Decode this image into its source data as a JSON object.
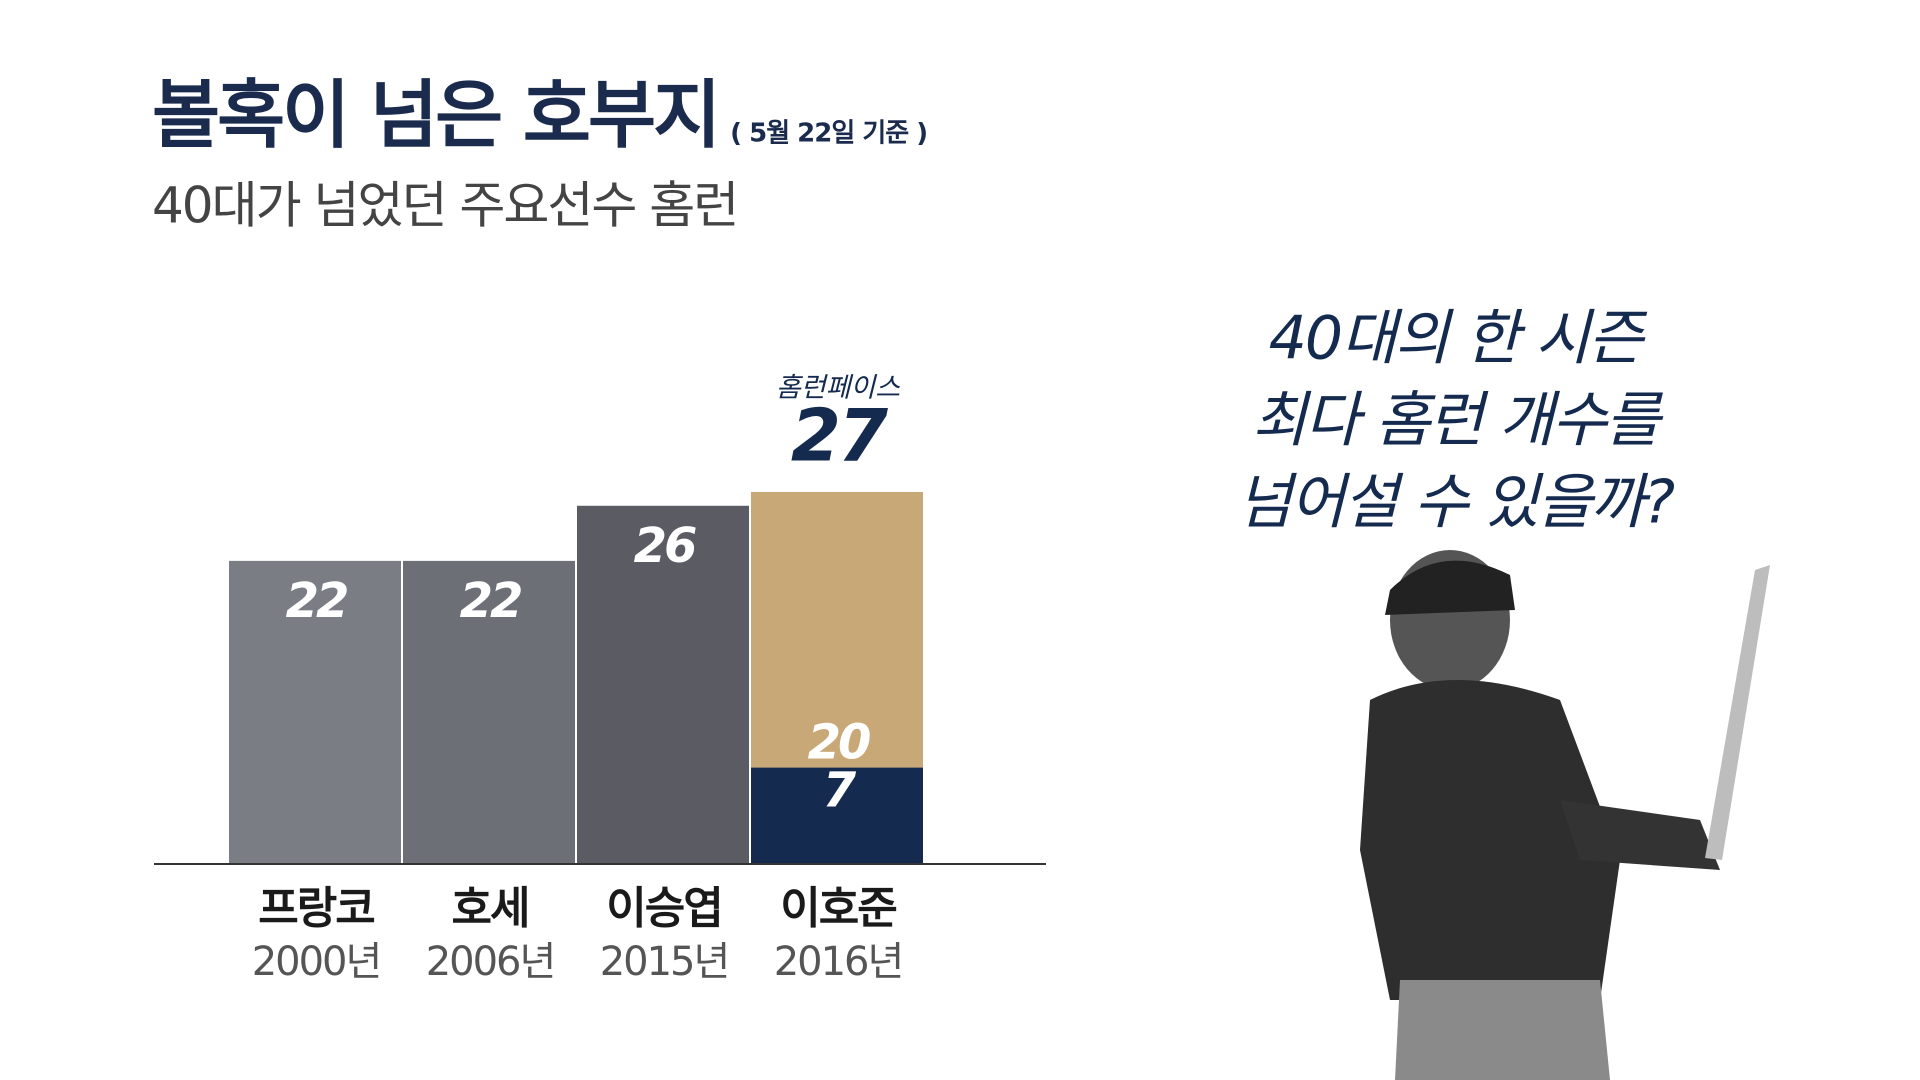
{
  "chart_data": {
    "type": "bar",
    "title": "볼혹이 넘은 호부지",
    "title_note": "( 5월 22일 기준 )",
    "subtitle": "40대가 넘었던 주요선수 홈런",
    "categories": [
      "프랑코",
      "호세",
      "이승엽",
      "이호준"
    ],
    "sublabels": [
      "2000년",
      "2006년",
      "2015년",
      "2016년"
    ],
    "series": [
      {
        "values": [
          22,
          22,
          26,
          7
        ],
        "colors": [
          "#7a7d84",
          "#6c6f75",
          "#5b5c63",
          "#142a4f"
        ]
      },
      {
        "values": [
          null,
          null,
          null,
          20
        ],
        "color": "#c9a877"
      }
    ],
    "pace_label": "홈런페이스",
    "pace_value": 27,
    "question": [
      "40대의 한 시즌",
      "최다 홈런 개수를",
      "넘어설 수 있을까?"
    ]
  }
}
